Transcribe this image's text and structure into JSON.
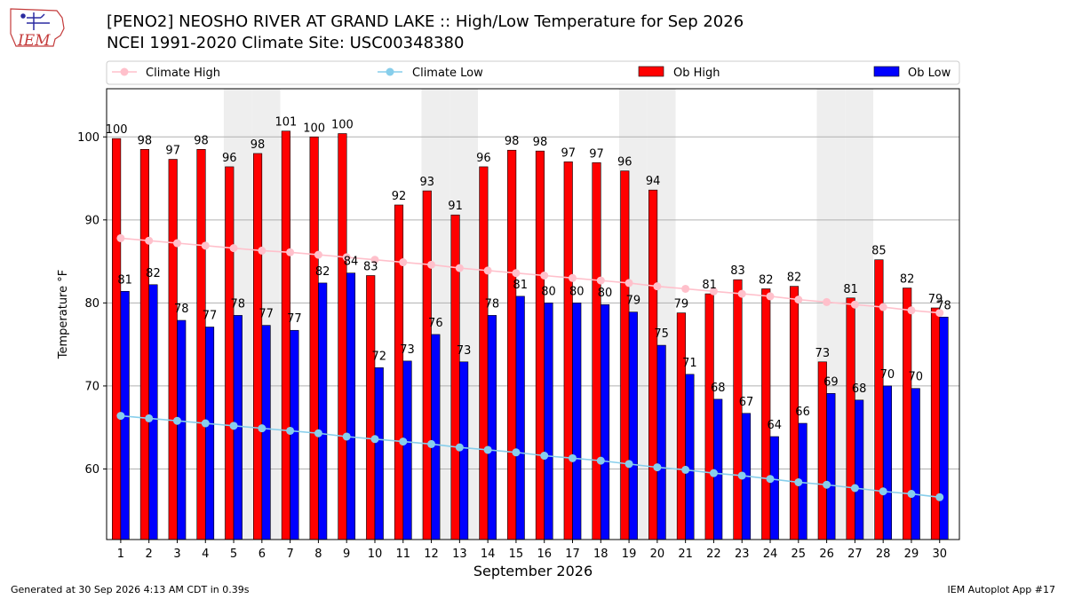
{
  "header": {
    "logo_text": "IEM",
    "title_line1": "[PENO2] NEOSHO RIVER  AT GRAND LAKE :: High/Low Temperature for Sep 2026",
    "title_line2": "NCEI 1991-2020 Climate Site: USC00348380"
  },
  "footer": {
    "left": "Generated at 30 Sep 2026 4:13 AM CDT in 0.39s",
    "right": "IEM Autoplot App #17"
  },
  "colors": {
    "ob_high": "#ff0000",
    "ob_low": "#0000ff",
    "climate_high": "#ffc0cb",
    "climate_low": "#87ceeb",
    "weekend_band": "#eeeeee",
    "grid": "#b0b0b0"
  },
  "chart_data": {
    "type": "bar",
    "xlabel": "September 2026",
    "ylabel": "Temperature °F",
    "ylim": [
      51.5,
      105.8
    ],
    "yticks": [
      60,
      70,
      80,
      90,
      100
    ],
    "grid": "horizontal",
    "legend_placement": "top",
    "categories": [
      "1",
      "2",
      "3",
      "4",
      "5",
      "6",
      "7",
      "8",
      "9",
      "10",
      "11",
      "12",
      "13",
      "14",
      "15",
      "16",
      "17",
      "18",
      "19",
      "20",
      "21",
      "22",
      "23",
      "24",
      "25",
      "26",
      "27",
      "28",
      "29",
      "30"
    ],
    "shaded_days": [
      5,
      6,
      12,
      13,
      19,
      20,
      26,
      27
    ],
    "bar_labels": {
      "ob_high": [
        "100",
        "98",
        "97",
        "98",
        "96",
        "98",
        "101",
        "100",
        "100",
        "83",
        "92",
        "93",
        "91",
        "96",
        "98",
        "98",
        "97",
        "97",
        "96",
        "94",
        "79",
        "81",
        "83",
        "82",
        "82",
        "73",
        "81",
        "85",
        "82",
        "79"
      ],
      "ob_low": [
        "81",
        "82",
        "78",
        "77",
        "78",
        "77",
        "77",
        "82",
        "84",
        "72",
        "73",
        "76",
        "73",
        "78",
        "81",
        "80",
        "80",
        "80",
        "79",
        "75",
        "71",
        "68",
        "67",
        "64",
        "66",
        "69",
        "68",
        "70",
        "70",
        "78"
      ]
    },
    "series": [
      {
        "name": "Climate High",
        "type": "line",
        "values": [
          87.8,
          87.5,
          87.2,
          86.9,
          86.6,
          86.3,
          86.1,
          85.8,
          85.5,
          85.2,
          84.9,
          84.6,
          84.2,
          83.9,
          83.6,
          83.3,
          83.0,
          82.7,
          82.4,
          82.0,
          81.7,
          81.4,
          81.1,
          80.8,
          80.4,
          80.1,
          79.8,
          79.5,
          79.1,
          78.8
        ]
      },
      {
        "name": "Climate Low",
        "type": "line",
        "values": [
          66.4,
          66.1,
          65.8,
          65.5,
          65.2,
          64.9,
          64.6,
          64.3,
          63.9,
          63.6,
          63.3,
          63.0,
          62.6,
          62.3,
          62.0,
          61.6,
          61.3,
          61.0,
          60.6,
          60.2,
          59.9,
          59.5,
          59.2,
          58.8,
          58.4,
          58.1,
          57.7,
          57.3,
          57.0,
          56.6
        ]
      },
      {
        "name": "Ob High",
        "type": "bar",
        "values": [
          99.8,
          98.5,
          97.3,
          98.5,
          96.4,
          98.0,
          100.7,
          100.0,
          100.4,
          83.3,
          91.8,
          93.5,
          90.6,
          96.4,
          98.4,
          98.3,
          97.0,
          96.9,
          95.9,
          93.6,
          78.8,
          81.1,
          82.8,
          81.7,
          82.0,
          72.9,
          80.6,
          85.2,
          81.8,
          79.4
        ]
      },
      {
        "name": "Ob Low",
        "type": "bar",
        "values": [
          81.4,
          82.2,
          77.9,
          77.1,
          78.5,
          77.3,
          76.7,
          82.4,
          83.6,
          72.2,
          73.0,
          76.2,
          72.9,
          78.5,
          80.8,
          80.0,
          80.0,
          79.8,
          78.9,
          74.9,
          71.4,
          68.4,
          66.7,
          63.9,
          65.5,
          69.1,
          68.3,
          70.0,
          69.7,
          78.3
        ]
      }
    ]
  }
}
